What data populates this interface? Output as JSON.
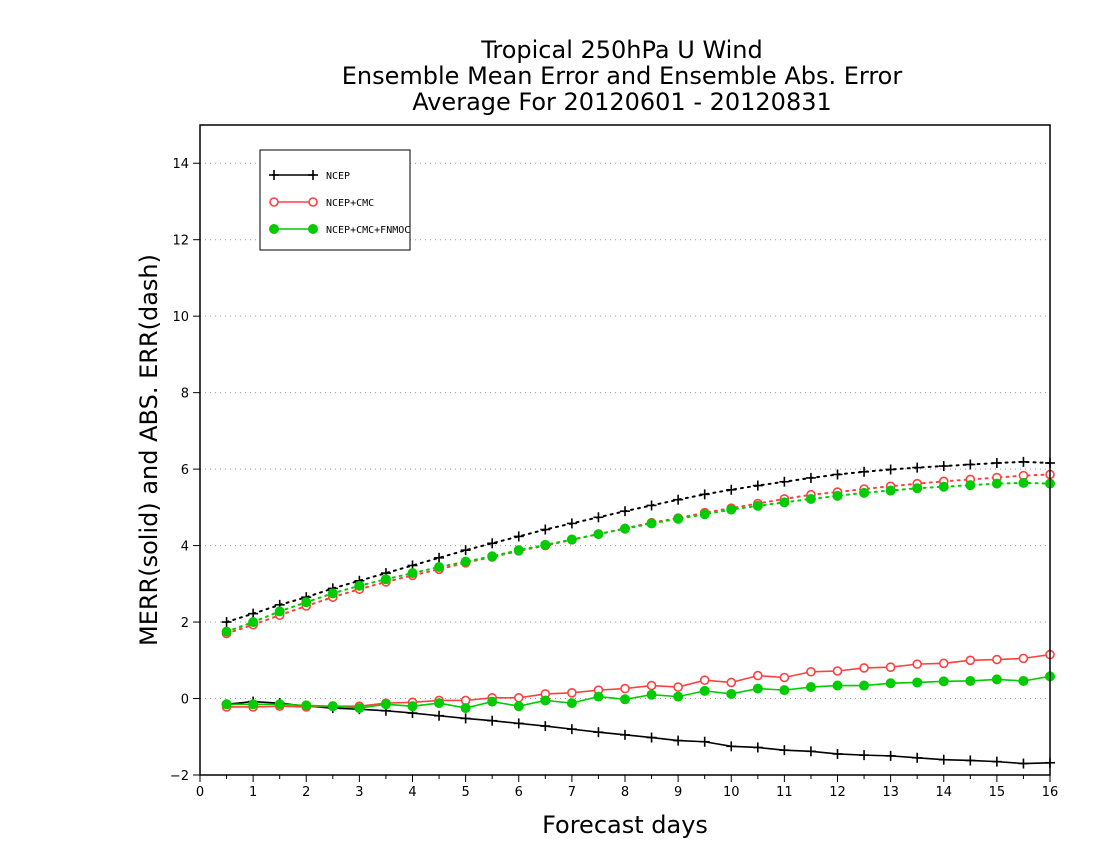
{
  "chart_data": {
    "type": "line",
    "title_lines": [
      "Tropical 250hPa U Wind",
      "Ensemble Mean Error and Ensemble Abs. Error",
      "Average For 20120601 - 20120831"
    ],
    "xlabel": "Forecast days",
    "ylabel": "MERR(solid) and ABS. ERR(dash)",
    "xlim": [
      0,
      16
    ],
    "ylim": [
      -2,
      15
    ],
    "x_ticks": [
      0,
      1,
      2,
      3,
      4,
      5,
      6,
      7,
      8,
      9,
      10,
      11,
      12,
      13,
      14,
      15,
      16
    ],
    "y_ticks": [
      -2,
      0,
      2,
      4,
      6,
      8,
      10,
      12,
      14
    ],
    "grid": "horizontal dotted",
    "legend_position": "top-left",
    "x": [
      0.5,
      1,
      1.5,
      2,
      2.5,
      3,
      3.5,
      4,
      4.5,
      5,
      5.5,
      6,
      6.5,
      7,
      7.5,
      8,
      8.5,
      9,
      9.5,
      10,
      10.5,
      11,
      11.5,
      12,
      12.5,
      13,
      13.5,
      14,
      14.5,
      15,
      15.5,
      16
    ],
    "series": [
      {
        "name": "NCEP",
        "color": "#000000",
        "marker": "plus",
        "abs_error": [
          2.0,
          2.22,
          2.45,
          2.65,
          2.88,
          3.08,
          3.28,
          3.48,
          3.68,
          3.88,
          4.06,
          4.24,
          4.42,
          4.58,
          4.74,
          4.9,
          5.05,
          5.2,
          5.34,
          5.46,
          5.57,
          5.67,
          5.77,
          5.86,
          5.93,
          5.99,
          6.04,
          6.08,
          6.12,
          6.16,
          6.19,
          6.16
        ],
        "mean_error": [
          -0.15,
          -0.08,
          -0.12,
          -0.2,
          -0.25,
          -0.28,
          -0.32,
          -0.38,
          -0.45,
          -0.52,
          -0.58,
          -0.65,
          -0.72,
          -0.8,
          -0.88,
          -0.95,
          -1.02,
          -1.1,
          -1.13,
          -1.25,
          -1.28,
          -1.35,
          -1.38,
          -1.45,
          -1.48,
          -1.5,
          -1.55,
          -1.6,
          -1.62,
          -1.65,
          -1.7,
          -1.68
        ]
      },
      {
        "name": "NCEP+CMC",
        "color": "#ff4040",
        "marker": "open-circle",
        "abs_error": [
          1.7,
          1.93,
          2.18,
          2.42,
          2.65,
          2.86,
          3.05,
          3.22,
          3.38,
          3.55,
          3.7,
          3.86,
          4.0,
          4.15,
          4.3,
          4.45,
          4.6,
          4.72,
          4.86,
          4.98,
          5.1,
          5.22,
          5.33,
          5.4,
          5.48,
          5.55,
          5.62,
          5.68,
          5.73,
          5.78,
          5.83,
          5.86
        ],
        "mean_error": [
          -0.22,
          -0.22,
          -0.2,
          -0.22,
          -0.2,
          -0.2,
          -0.12,
          -0.1,
          -0.05,
          -0.05,
          0.02,
          0.02,
          0.12,
          0.15,
          0.22,
          0.26,
          0.34,
          0.3,
          0.48,
          0.42,
          0.6,
          0.55,
          0.7,
          0.72,
          0.8,
          0.82,
          0.9,
          0.92,
          1.0,
          1.02,
          1.05,
          1.15
        ]
      },
      {
        "name": "NCEP+CMC+FNMOC",
        "color": "#00cc00",
        "marker": "filled-circle",
        "abs_error": [
          1.75,
          2.0,
          2.28,
          2.52,
          2.75,
          2.95,
          3.12,
          3.28,
          3.44,
          3.58,
          3.72,
          3.88,
          4.02,
          4.16,
          4.3,
          4.44,
          4.58,
          4.7,
          4.82,
          4.94,
          5.04,
          5.13,
          5.22,
          5.3,
          5.38,
          5.44,
          5.5,
          5.54,
          5.58,
          5.62,
          5.64,
          5.62
        ],
        "mean_error": [
          -0.15,
          -0.15,
          -0.15,
          -0.18,
          -0.2,
          -0.25,
          -0.15,
          -0.2,
          -0.12,
          -0.25,
          -0.08,
          -0.2,
          -0.05,
          -0.12,
          0.05,
          -0.02,
          0.1,
          0.05,
          0.2,
          0.12,
          0.26,
          0.22,
          0.3,
          0.34,
          0.34,
          0.4,
          0.42,
          0.45,
          0.46,
          0.5,
          0.46,
          0.58
        ]
      }
    ]
  }
}
